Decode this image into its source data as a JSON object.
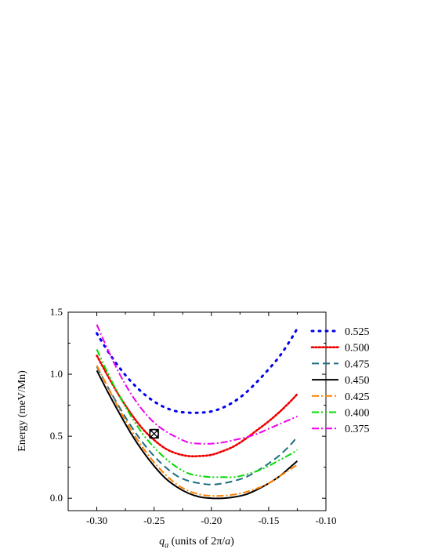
{
  "chart_data": {
    "type": "line",
    "xlabel": {
      "var": "q",
      "sub": "a",
      "rest_prefix": " (units of 2π/",
      "rest_var": "a",
      "rest_suffix": ")"
    },
    "ylabel": "Energy (meV/Mn)",
    "xlim": [
      -0.325,
      -0.1
    ],
    "ylim": [
      -0.1,
      1.5
    ],
    "xticks": [
      "-0.30",
      "-0.25",
      "-0.20",
      "-0.15",
      "-0.10"
    ],
    "xtick_values": [
      -0.3,
      -0.25,
      -0.2,
      -0.15,
      -0.1
    ],
    "yticks": [
      "0.0",
      "0.5",
      "1.0",
      "1.5"
    ],
    "ytick_values": [
      0.0,
      0.5,
      1.0,
      1.5
    ],
    "grid": false,
    "legend_position": "right",
    "x": [
      -0.3,
      -0.29,
      -0.28,
      -0.27,
      -0.26,
      -0.25,
      -0.24,
      -0.23,
      -0.22,
      -0.21,
      -0.2,
      -0.19,
      -0.18,
      -0.17,
      -0.16,
      -0.15,
      -0.14,
      -0.13,
      -0.125
    ],
    "series": [
      {
        "name": "0.525",
        "color": "#0000ee",
        "dash": "2,7",
        "width": 3,
        "values": [
          1.33,
          1.18,
          1.05,
          0.94,
          0.85,
          0.78,
          0.73,
          0.7,
          0.69,
          0.69,
          0.7,
          0.73,
          0.78,
          0.85,
          0.94,
          1.04,
          1.15,
          1.29,
          1.37
        ]
      },
      {
        "name": "0.500",
        "color": "#ee0000",
        "dash": "2,2.5",
        "width": 2.6,
        "values": [
          1.15,
          0.98,
          0.82,
          0.68,
          0.56,
          0.47,
          0.4,
          0.36,
          0.34,
          0.34,
          0.35,
          0.38,
          0.42,
          0.48,
          0.55,
          0.62,
          0.7,
          0.79,
          0.84
        ]
      },
      {
        "name": "0.475",
        "color": "#1f6e80",
        "dash": "9,5",
        "width": 2,
        "values": [
          1.06,
          0.89,
          0.73,
          0.58,
          0.45,
          0.34,
          0.25,
          0.18,
          0.14,
          0.12,
          0.11,
          0.12,
          0.14,
          0.17,
          0.22,
          0.28,
          0.35,
          0.44,
          0.5
        ]
      },
      {
        "name": "0.450",
        "color": "#000000",
        "dash": "",
        "width": 2,
        "values": [
          1.03,
          0.85,
          0.68,
          0.52,
          0.38,
          0.26,
          0.16,
          0.09,
          0.04,
          0.01,
          0.0,
          0.0,
          0.01,
          0.03,
          0.07,
          0.12,
          0.18,
          0.26,
          0.3
        ]
      },
      {
        "name": "0.425",
        "color": "#ff8000",
        "dash": "9,3,2,3",
        "width": 2,
        "values": [
          1.07,
          0.89,
          0.71,
          0.55,
          0.41,
          0.29,
          0.19,
          0.11,
          0.06,
          0.03,
          0.02,
          0.02,
          0.03,
          0.05,
          0.08,
          0.12,
          0.18,
          0.24,
          0.27
        ]
      },
      {
        "name": "0.400",
        "color": "#00dd00",
        "dash": "9,3,2,3,2,3",
        "width": 2,
        "values": [
          1.2,
          1.0,
          0.82,
          0.66,
          0.52,
          0.41,
          0.32,
          0.25,
          0.2,
          0.18,
          0.17,
          0.17,
          0.17,
          0.19,
          0.22,
          0.26,
          0.31,
          0.36,
          0.39
        ]
      },
      {
        "name": "0.375",
        "color": "#ee00ee",
        "dash": "9,3,2,3",
        "width": 2,
        "values": [
          1.4,
          1.19,
          1.0,
          0.84,
          0.71,
          0.61,
          0.54,
          0.49,
          0.45,
          0.44,
          0.44,
          0.45,
          0.47,
          0.49,
          0.52,
          0.56,
          0.6,
          0.64,
          0.66
        ]
      }
    ],
    "marker": {
      "symbol": "circle-x",
      "x": -0.25,
      "y": 0.52
    }
  }
}
